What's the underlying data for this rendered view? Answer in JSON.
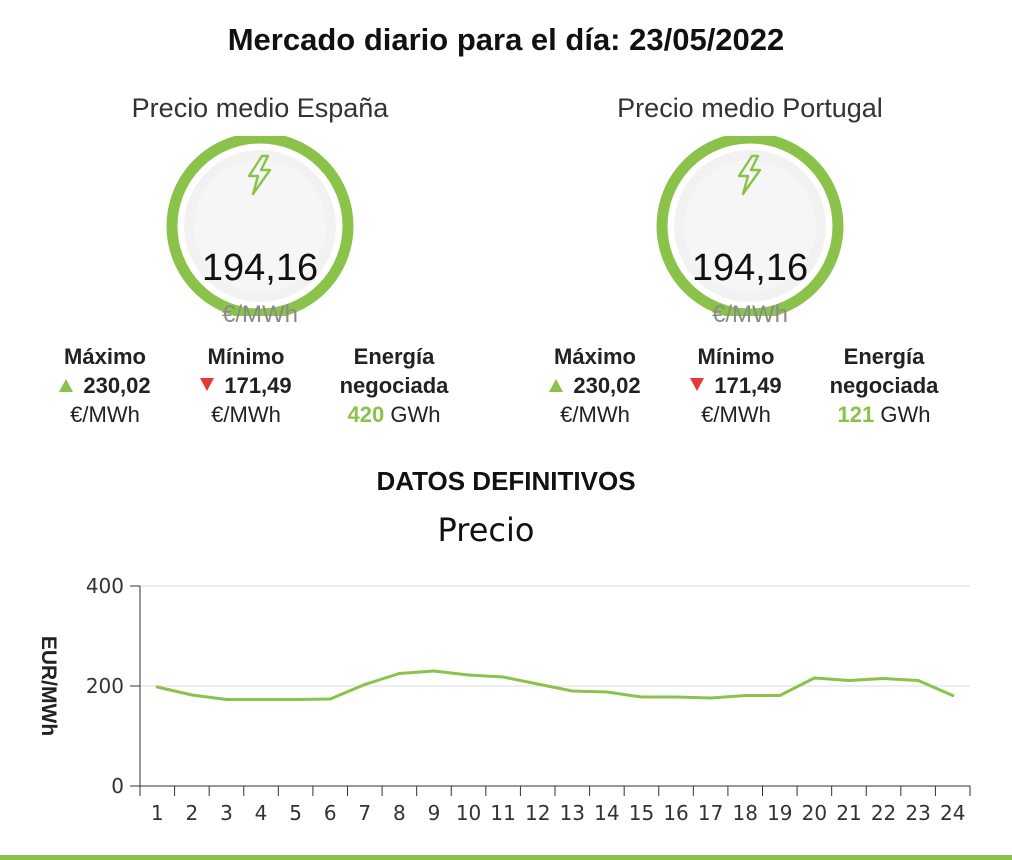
{
  "header": {
    "title": "Mercado diario para el día: 23/05/2022"
  },
  "panels": {
    "spain": {
      "title": "Precio medio España",
      "price": "194,16",
      "unit": "€/MWh",
      "max_label": "Máximo",
      "max_value": "230,02",
      "max_unit": "€/MWh",
      "min_label": "Mínimo",
      "min_value": "171,49",
      "min_unit": "€/MWh",
      "energy_label_1": "Energía",
      "energy_label_2": "negociada",
      "energy_value": "420",
      "energy_unit": "GWh"
    },
    "portugal": {
      "title": "Precio medio Portugal",
      "price": "194,16",
      "unit": "€/MWh",
      "max_label": "Máximo",
      "max_value": "230,02",
      "max_unit": "€/MWh",
      "min_label": "Mínimo",
      "min_value": "171,49",
      "min_unit": "€/MWh",
      "energy_label_1": "Energía",
      "energy_label_2": "negociada",
      "energy_value": "121",
      "energy_unit": "GWh"
    }
  },
  "section": {
    "title": "DATOS DEFINITIVOS"
  },
  "colors": {
    "accent_green": "#8bc34a",
    "down_red": "#e53935",
    "gauge_bg": "#f2f2f2"
  },
  "icons": {
    "gauge_icon": "lightning-bolt-icon",
    "max_icon": "triangle-up-icon",
    "min_icon": "triangle-down-icon"
  },
  "chart_data": {
    "type": "line",
    "title": "Precio",
    "xlabel": "",
    "ylabel": "EUR/MWh",
    "x": [
      1,
      2,
      3,
      4,
      5,
      6,
      7,
      8,
      9,
      10,
      11,
      12,
      13,
      14,
      15,
      16,
      17,
      18,
      19,
      20,
      21,
      22,
      23,
      24
    ],
    "series": [
      {
        "values": [
          198,
          182,
          173,
          173,
          173,
          174,
          203,
          225,
          230,
          222,
          218,
          204,
          190,
          188,
          178,
          178,
          176,
          181,
          181,
          216,
          211,
          215,
          211,
          181
        ]
      }
    ],
    "ylim": [
      0,
      400
    ],
    "yticks": [
      0,
      200,
      400
    ],
    "grid": true,
    "legend": "none"
  }
}
